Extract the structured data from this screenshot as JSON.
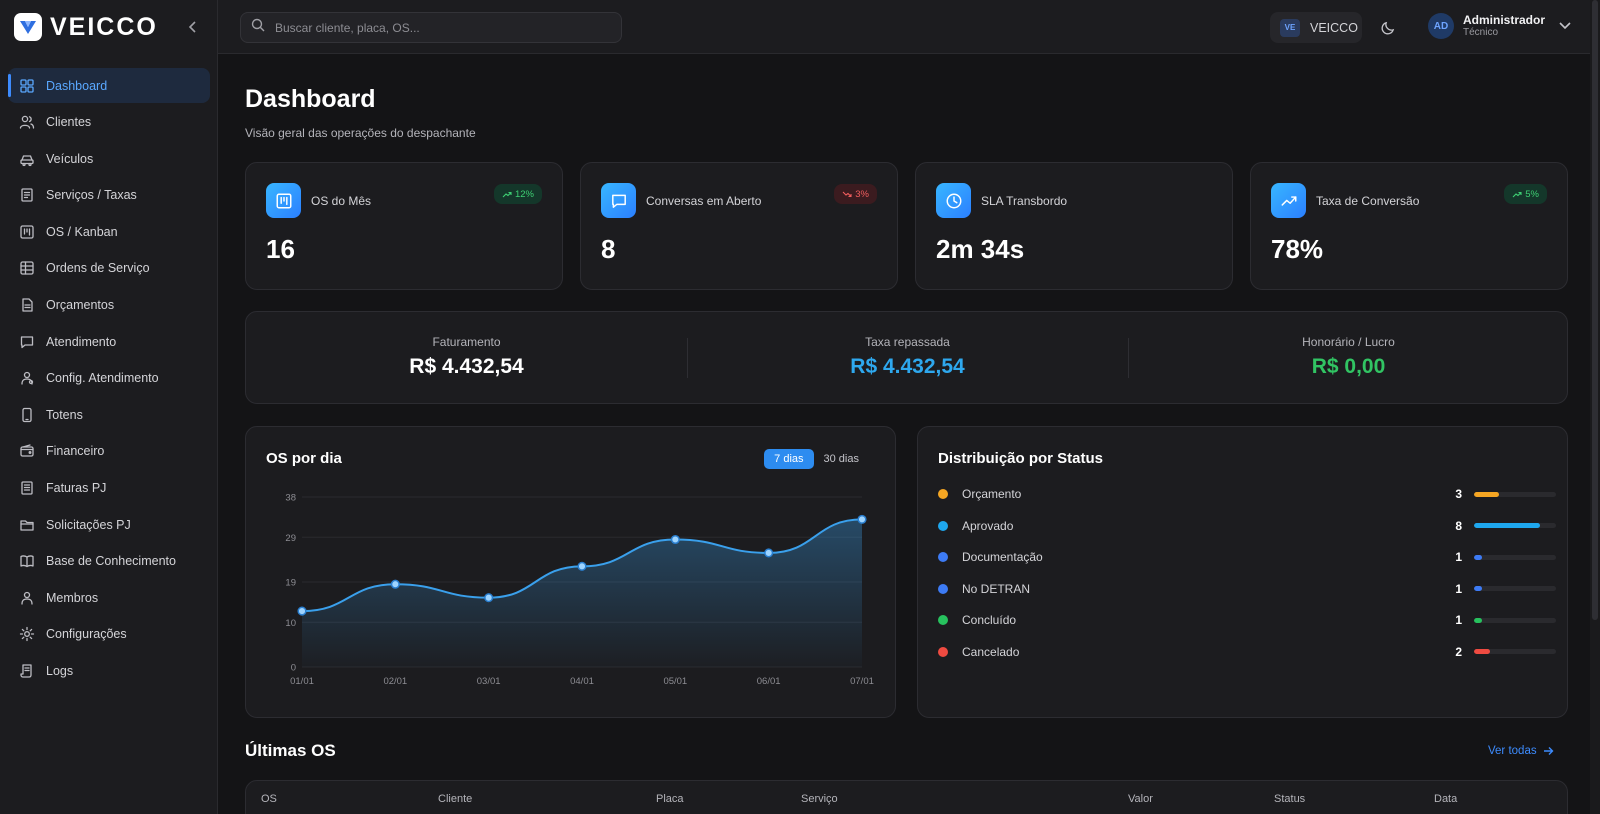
{
  "brand": {
    "name": "VEICCO"
  },
  "sidebar": {
    "items": [
      {
        "label": "Dashboard",
        "icon": "dashboard-icon",
        "active": true
      },
      {
        "label": "Clientes",
        "icon": "users-icon"
      },
      {
        "label": "Veículos",
        "icon": "car-icon"
      },
      {
        "label": "Serviços / Taxas",
        "icon": "receipt-icon"
      },
      {
        "label": "OS / Kanban",
        "icon": "kanban-icon"
      },
      {
        "label": "Ordens de Serviço",
        "icon": "table-icon"
      },
      {
        "label": "Orçamentos",
        "icon": "file-icon"
      },
      {
        "label": "Atendimento",
        "icon": "chat-icon"
      },
      {
        "label": "Config. Atendimento",
        "icon": "bot-config-icon"
      },
      {
        "label": "Totens",
        "icon": "tablet-icon"
      },
      {
        "label": "Financeiro",
        "icon": "wallet-icon"
      },
      {
        "label": "Faturas PJ",
        "icon": "invoice-icon"
      },
      {
        "label": "Solicitações PJ",
        "icon": "folder-icon"
      },
      {
        "label": "Base de Conhecimento",
        "icon": "book-icon"
      },
      {
        "label": "Membros",
        "icon": "members-icon"
      },
      {
        "label": "Configurações",
        "icon": "gear-icon"
      },
      {
        "label": "Logs",
        "icon": "scroll-icon"
      }
    ]
  },
  "topbar": {
    "search_placeholder": "Buscar cliente, placa, OS...",
    "org_badge": "VE",
    "org_name": "VEICCO",
    "user_initials": "AD",
    "user_name": "Administrador",
    "user_role": "Técnico"
  },
  "page": {
    "title": "Dashboard",
    "subtitle": "Visão geral das operações do despachante"
  },
  "kpis": [
    {
      "label": "OS do Mês",
      "value": "16",
      "badge": "12%",
      "trend": "up",
      "icon": "kanban-icon"
    },
    {
      "label": "Conversas em Aberto",
      "value": "8",
      "badge": "3%",
      "trend": "down",
      "icon": "chat-icon"
    },
    {
      "label": "SLA Transbordo",
      "value": "2m 34s",
      "icon": "clock-icon"
    },
    {
      "label": "Taxa de Conversão",
      "value": "78%",
      "badge": "5%",
      "trend": "up",
      "icon": "trending-up-icon"
    }
  ],
  "finance": [
    {
      "label": "Faturamento",
      "value": "R$ 4.432,54",
      "color": "#ffffff"
    },
    {
      "label": "Taxa repassada",
      "value": "R$ 4.432,54",
      "color": "#2ea8ee"
    },
    {
      "label": "Honorário / Lucro",
      "value": "R$ 0,00",
      "color": "#31c463"
    }
  ],
  "os_chart": {
    "title": "OS por dia",
    "range_options": [
      "7 dias",
      "30 dias"
    ],
    "selected_range": "7 dias"
  },
  "chart_data": {
    "type": "area",
    "title": "OS por dia",
    "x": [
      "01/01",
      "02/01",
      "03/01",
      "04/01",
      "05/01",
      "06/01",
      "07/01"
    ],
    "values": [
      12.5,
      18.5,
      15.5,
      22.5,
      28.5,
      25.5,
      33
    ],
    "yticks": [
      0,
      10,
      19,
      29,
      38
    ],
    "ylim": [
      0,
      38
    ],
    "line_color": "#3aa0ec",
    "grid": true
  },
  "status_dist": {
    "title": "Distribuição por Status",
    "max": 10,
    "items": [
      {
        "label": "Orçamento",
        "count": 3,
        "color": "#f5a623"
      },
      {
        "label": "Aprovado",
        "count": 8,
        "color": "#1ea7ee"
      },
      {
        "label": "Documentação",
        "count": 1,
        "color": "#3d7bf5"
      },
      {
        "label": "No DETRAN",
        "count": 1,
        "color": "#3d7bf5"
      },
      {
        "label": "Concluído",
        "count": 1,
        "color": "#27c25e"
      },
      {
        "label": "Cancelado",
        "count": 2,
        "color": "#ef4b41"
      }
    ]
  },
  "recent": {
    "title": "Últimas OS",
    "see_all": "Ver todas",
    "columns": [
      "OS",
      "Cliente",
      "Placa",
      "Serviço",
      "Valor",
      "Status",
      "Data"
    ]
  }
}
